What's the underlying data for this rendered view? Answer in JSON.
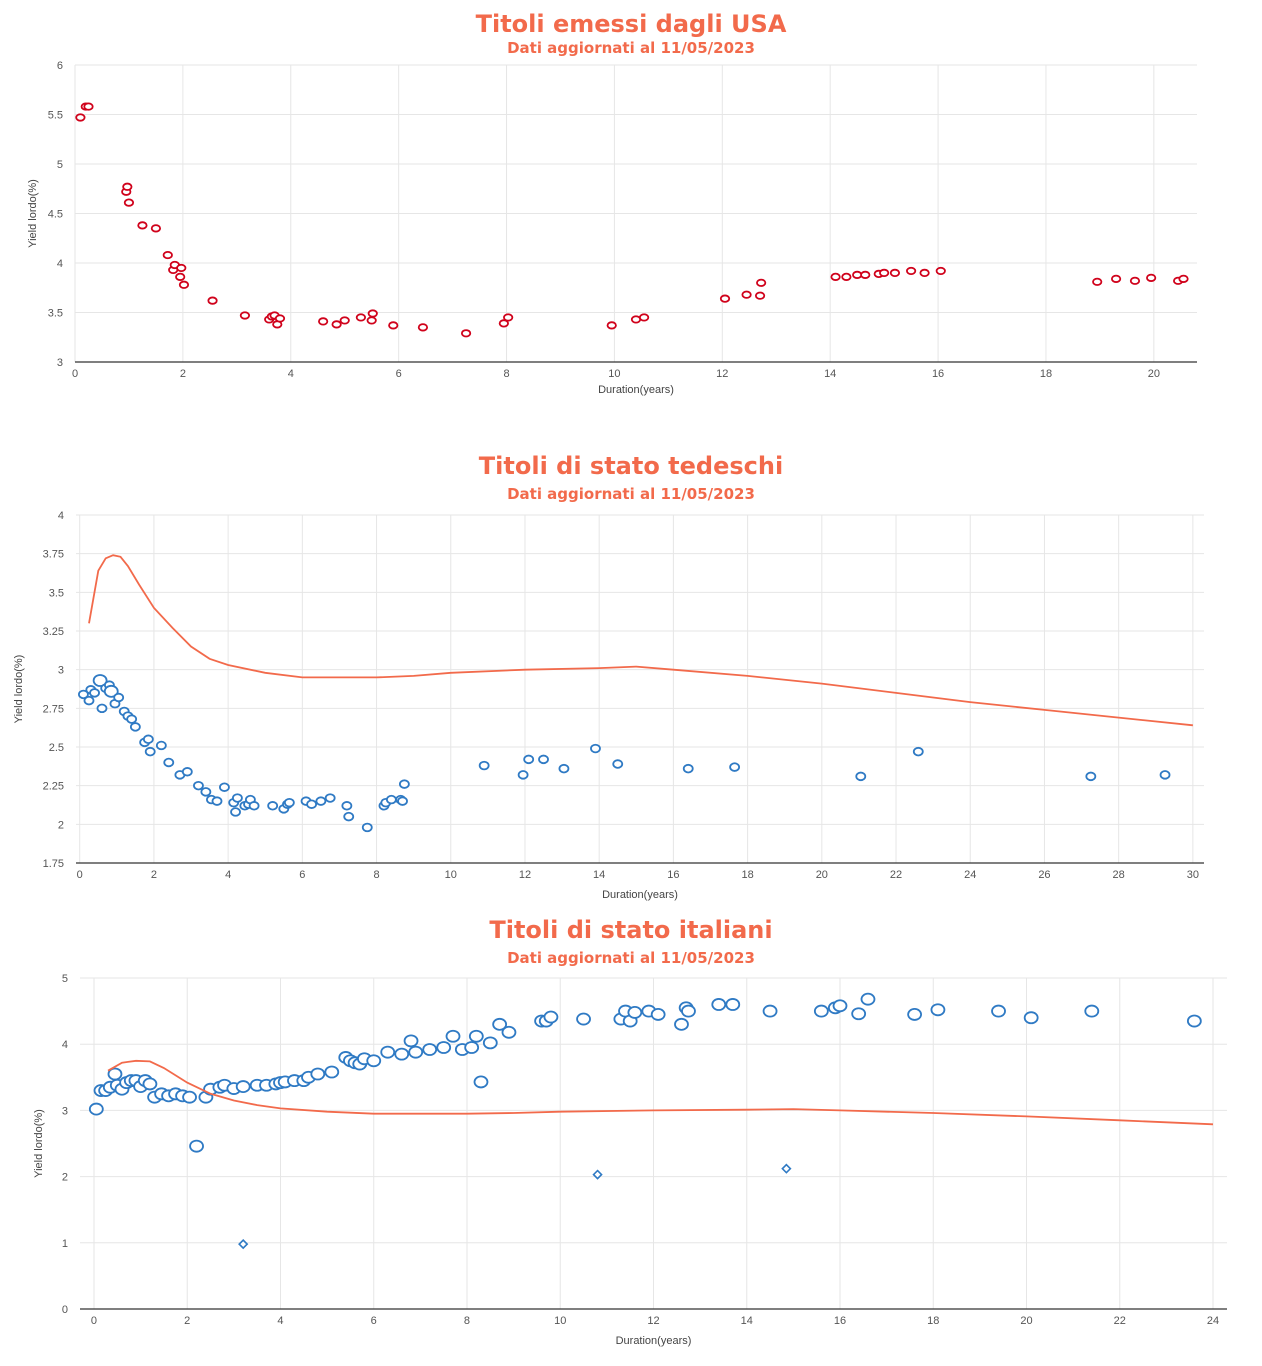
{
  "chart_data": [
    {
      "type": "scatter",
      "title": "Titoli emessi dagli USA",
      "subtitle": "Dati aggiornati al 11/05/2023",
      "xlabel": "Duration(years)",
      "ylabel": "Yield lordo(%)",
      "xlim": [
        0,
        20.8
      ],
      "ylim": [
        3,
        6
      ],
      "xticks": [
        0,
        2,
        4,
        6,
        8,
        10,
        12,
        14,
        16,
        18,
        20
      ],
      "yticks": [
        3,
        3.5,
        4,
        4.5,
        5,
        5.5,
        6
      ],
      "grid": true,
      "marker_color": "#d0021b",
      "series": [
        {
          "x": [
            0.1,
            0.2,
            0.25,
            0.95,
            0.97,
            1.0,
            1.25,
            1.5,
            1.72,
            1.82,
            1.85,
            1.95,
            1.97,
            2.02,
            2.55,
            3.15,
            3.6,
            3.65,
            3.7,
            3.75,
            3.8,
            4.6,
            4.85,
            5.0,
            5.3,
            5.5,
            5.52,
            5.9,
            6.45,
            7.25,
            7.95,
            8.03,
            9.95,
            10.4,
            10.55,
            12.05,
            12.45,
            12.7,
            12.72,
            14.1,
            14.3,
            14.5,
            14.65,
            14.9,
            15.0,
            15.2,
            15.5,
            15.75,
            16.05,
            18.95,
            19.3,
            19.65,
            19.95,
            20.45,
            20.55
          ],
          "y": [
            5.47,
            5.58,
            5.58,
            4.72,
            4.77,
            4.61,
            4.38,
            4.35,
            4.08,
            3.93,
            3.98,
            3.86,
            3.95,
            3.78,
            3.62,
            3.47,
            3.43,
            3.46,
            3.47,
            3.38,
            3.44,
            3.41,
            3.38,
            3.42,
            3.45,
            3.42,
            3.49,
            3.37,
            3.35,
            3.29,
            3.39,
            3.45,
            3.37,
            3.43,
            3.45,
            3.64,
            3.68,
            3.67,
            3.8,
            3.86,
            3.86,
            3.88,
            3.88,
            3.89,
            3.9,
            3.9,
            3.92,
            3.9,
            3.92,
            3.81,
            3.84,
            3.82,
            3.85,
            3.82,
            3.84
          ]
        }
      ]
    },
    {
      "type": "scatter",
      "title": "Titoli di stato tedeschi",
      "subtitle": "Dati aggiornati al 11/05/2023",
      "xlabel": "Duration(years)",
      "ylabel": "Yield lordo(%)",
      "xlim": [
        -0.1,
        30.3
      ],
      "ylim": [
        1.75,
        4
      ],
      "xticks": [
        0,
        2,
        4,
        6,
        8,
        10,
        12,
        14,
        16,
        18,
        20,
        22,
        24,
        26,
        28,
        30
      ],
      "yticks": [
        1.75,
        2,
        2.25,
        2.5,
        2.75,
        3,
        3.25,
        3.5,
        3.75,
        4
      ],
      "grid": true,
      "marker_color": "#2f7ac4",
      "line_color": "#f26a4b",
      "series": [
        {
          "name": "",
          "x": [
            0.1,
            0.25,
            0.3,
            0.4,
            0.55,
            0.6,
            0.7,
            0.8,
            0.85,
            0.95,
            1.05,
            1.2,
            1.3,
            1.4,
            1.5,
            1.75,
            1.85,
            1.9,
            2.2,
            2.4,
            2.7,
            2.9,
            3.2,
            3.4,
            3.55,
            3.7,
            3.9,
            4.15,
            4.2,
            4.25,
            4.45,
            4.55,
            4.6,
            4.7,
            5.2,
            5.5,
            5.6,
            5.65,
            6.1,
            6.25,
            6.5,
            6.75,
            7.2,
            7.25,
            7.75,
            8.2,
            8.25,
            8.4,
            8.65,
            8.7,
            8.75,
            10.9,
            11.95,
            12.1,
            12.5,
            13.05,
            13.9,
            14.5,
            16.4,
            17.65,
            21.05,
            22.6,
            27.25,
            29.25
          ],
          "y": [
            2.84,
            2.8,
            2.87,
            2.85,
            2.93,
            2.75,
            2.88,
            2.9,
            2.86,
            2.78,
            2.82,
            2.73,
            2.7,
            2.68,
            2.63,
            2.53,
            2.55,
            2.47,
            2.51,
            2.4,
            2.32,
            2.34,
            2.25,
            2.21,
            2.16,
            2.15,
            2.24,
            2.14,
            2.08,
            2.17,
            2.12,
            2.13,
            2.16,
            2.12,
            2.12,
            2.1,
            2.13,
            2.14,
            2.15,
            2.13,
            2.15,
            2.17,
            2.12,
            2.05,
            1.98,
            2.12,
            2.14,
            2.16,
            2.16,
            2.15,
            2.26,
            2.38,
            2.32,
            2.42,
            2.42,
            2.36,
            2.49,
            2.39,
            2.36,
            2.37,
            2.31,
            2.47,
            2.31,
            2.32
          ],
          "size": [
            4.5,
            4.5,
            4.5,
            4.5,
            6.5,
            4.5,
            4.5,
            4.5,
            6.5,
            4.5,
            4.5,
            4.5,
            4.5,
            4.5,
            4.5,
            4.5,
            4.5,
            4.5,
            4.5,
            4.5,
            4.5,
            4.5,
            4.5,
            4.5,
            4.5,
            4.5,
            4.5,
            4.5,
            4.5,
            4.5,
            4.5,
            4.5,
            4.5,
            4.5,
            4.5,
            4.5,
            4.5,
            4.5,
            4.5,
            4.5,
            4.5,
            4.5,
            4.5,
            4.5,
            4.5,
            4.5,
            4.5,
            4.5,
            4.5,
            4.5,
            4.5,
            4.5,
            4.5,
            4.5,
            4.5,
            4.5,
            4.5,
            4.5,
            4.5,
            4.5,
            4.5,
            4.5,
            4.5,
            4.5
          ]
        },
        {
          "name": "",
          "style": "line",
          "x": [
            0.25,
            0.5,
            0.7,
            0.9,
            1.1,
            1.3,
            1.6,
            2.0,
            2.5,
            3.0,
            3.5,
            4.0,
            5.0,
            6.0,
            7.0,
            8.0,
            9.0,
            10.0,
            12.0,
            14.0,
            15.0,
            16.0,
            18.0,
            20.0,
            22.0,
            24.0,
            26.0,
            28.0,
            30.0
          ],
          "y": [
            3.3,
            3.64,
            3.72,
            3.74,
            3.73,
            3.67,
            3.55,
            3.4,
            3.27,
            3.15,
            3.07,
            3.03,
            2.98,
            2.95,
            2.95,
            2.95,
            2.96,
            2.98,
            3.0,
            3.01,
            3.02,
            3.0,
            2.96,
            2.91,
            2.85,
            2.79,
            2.74,
            2.69,
            2.64
          ]
        }
      ]
    },
    {
      "type": "scatter",
      "title": "Titoli di stato italiani",
      "subtitle": "Dati aggiornati al 11/05/2023",
      "xlabel": "Duration(years)",
      "ylabel": "Yield lordo(%)",
      "xlim": [
        -0.3,
        24.3
      ],
      "ylim": [
        0,
        5
      ],
      "xticks": [
        0,
        2,
        4,
        6,
        8,
        10,
        12,
        14,
        16,
        18,
        20,
        22,
        24
      ],
      "yticks": [
        0,
        1,
        2,
        3,
        4,
        5
      ],
      "grid": true,
      "marker_color": "#2f7ac4",
      "line_color": "#f26a4b",
      "series": [
        {
          "name": "",
          "x": [
            0.05,
            0.15,
            0.25,
            0.35,
            0.45,
            0.5,
            0.6,
            0.7,
            0.8,
            0.9,
            1.0,
            1.1,
            1.2,
            1.3,
            1.45,
            1.6,
            1.75,
            1.9,
            2.05,
            2.2,
            2.4,
            2.5,
            2.7,
            2.8,
            3.0,
            3.2,
            3.5,
            3.7,
            3.9,
            4.0,
            4.1,
            4.3,
            4.5,
            4.6,
            4.8,
            5.1,
            5.4,
            5.5,
            5.6,
            5.7,
            5.8,
            6.0,
            6.3,
            6.6,
            6.8,
            6.9,
            7.2,
            7.5,
            7.7,
            7.9,
            8.1,
            8.2,
            8.3,
            8.5,
            8.7,
            8.9,
            9.6,
            9.7,
            9.8,
            10.5,
            11.3,
            11.4,
            11.5,
            11.6,
            11.9,
            12.1,
            12.6,
            12.7,
            12.75,
            13.4,
            13.7,
            14.5,
            15.6,
            15.9,
            16.0,
            16.4,
            16.6,
            17.6,
            18.1,
            19.4,
            20.1,
            21.4,
            23.6
          ],
          "y": [
            3.02,
            3.3,
            3.3,
            3.35,
            3.55,
            3.38,
            3.32,
            3.42,
            3.45,
            3.45,
            3.36,
            3.45,
            3.4,
            3.2,
            3.25,
            3.22,
            3.25,
            3.22,
            3.2,
            2.46,
            3.2,
            3.32,
            3.35,
            3.38,
            3.33,
            3.36,
            3.38,
            3.38,
            3.4,
            3.42,
            3.43,
            3.45,
            3.45,
            3.5,
            3.55,
            3.58,
            3.8,
            3.75,
            3.72,
            3.7,
            3.78,
            3.75,
            3.88,
            3.85,
            4.05,
            3.88,
            3.92,
            3.95,
            4.12,
            3.92,
            3.95,
            4.12,
            3.43,
            4.02,
            4.3,
            4.18,
            4.35,
            4.35,
            4.41,
            4.38,
            4.38,
            4.5,
            4.35,
            4.48,
            4.5,
            4.45,
            4.3,
            4.55,
            4.5,
            4.6,
            4.6,
            4.5,
            4.5,
            4.55,
            4.58,
            4.46,
            4.68,
            4.45,
            4.52,
            4.5,
            4.4,
            4.5,
            4.35
          ],
          "size": [
            6.5,
            6.5,
            6.5,
            6.5,
            6.5,
            6.5,
            6.5,
            6.5,
            6.5,
            6.5,
            6.5,
            6.5,
            6.5,
            6.5,
            6.5,
            6.5,
            6.5,
            6.5,
            6.5,
            6.5,
            6.5,
            6.5,
            6.5,
            6.5,
            6.5,
            6.5,
            6.5,
            6.5,
            6.5,
            6.5,
            6.5,
            6.5,
            6.5,
            6.5,
            6.5,
            6.5,
            6.5,
            6.5,
            6.5,
            6.5,
            6.5,
            6.5,
            6.5,
            6.5,
            6.5,
            6.5,
            6.5,
            6.5,
            6.5,
            6.5,
            6.5,
            6.5,
            6.5,
            6.5,
            6.5,
            6.5,
            6.5,
            6.5,
            6.5,
            6.5,
            6.5,
            6.5,
            6.5,
            6.5,
            6.5,
            6.5,
            6.5,
            6.5,
            6.5,
            6.5,
            6.5,
            6.5,
            6.5,
            6.5,
            6.5,
            6.5,
            6.5,
            6.5,
            6.5,
            6.5,
            6.5,
            6.5,
            6.5
          ]
        },
        {
          "name": "",
          "marker": "diamond",
          "x": [
            3.2,
            10.8,
            14.85
          ],
          "y": [
            0.98,
            2.03,
            2.12
          ]
        },
        {
          "name": "",
          "style": "line",
          "x": [
            0.3,
            0.6,
            0.9,
            1.2,
            1.5,
            2.0,
            2.5,
            3.0,
            3.5,
            4.0,
            5.0,
            6.0,
            7.0,
            8.0,
            9.0,
            10.0,
            12.0,
            14.0,
            15.0,
            16.0,
            18.0,
            20.0,
            22.0,
            24.0
          ],
          "y": [
            3.6,
            3.72,
            3.75,
            3.74,
            3.64,
            3.42,
            3.25,
            3.15,
            3.08,
            3.03,
            2.98,
            2.95,
            2.95,
            2.95,
            2.96,
            2.98,
            3.0,
            3.01,
            3.02,
            3.0,
            2.96,
            2.91,
            2.85,
            2.79
          ]
        }
      ]
    }
  ]
}
